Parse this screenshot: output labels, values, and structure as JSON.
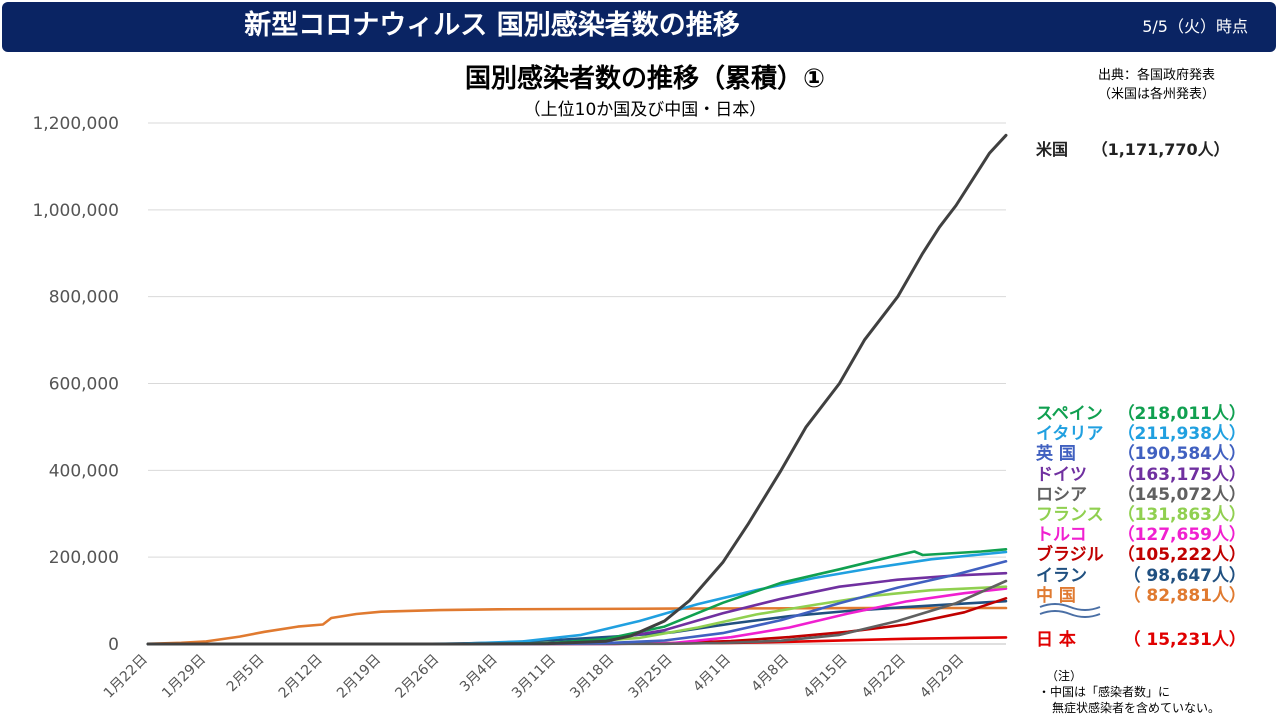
{
  "header": {
    "title": "新型コロナウィルス 国別感染者数の推移",
    "date": "5/5（火）時点"
  },
  "source": {
    "line1": "出典：各国政府発表",
    "line2": "（米国は各州発表）"
  },
  "note": {
    "head": "（注）",
    "line1": "・中国は「感染者数」に",
    "line2": "無症状感染者を含めていない。"
  },
  "chart_data": {
    "type": "line",
    "title": "国別感染者数の推移（累積）①",
    "subtitle": "（上位10か国及び中国・日本）",
    "xlabel": "",
    "ylabel": "",
    "ylim": [
      0,
      1200000
    ],
    "yticks": [
      0,
      200000,
      400000,
      600000,
      800000,
      1000000,
      1200000
    ],
    "ytick_labels": [
      "0",
      "200,000",
      "400,000",
      "600,000",
      "800,000",
      "1,000,000",
      "1,200,000"
    ],
    "x_start": "1月22日",
    "xtick_labels": [
      "1月22日",
      "1月29日",
      "2月5日",
      "2月12日",
      "2月19日",
      "2月26日",
      "3月4日",
      "3月11日",
      "3月18日",
      "3月25日",
      "4月1日",
      "4月8日",
      "4月15日",
      "4月22日",
      "4月29日"
    ],
    "grid": true,
    "legend_position": "right",
    "series": [
      {
        "name": "米国",
        "value_label": "（1,171,770人）",
        "color": "#404040",
        "points": [
          [
            "1月22日",
            0
          ],
          [
            "2月29日",
            70
          ],
          [
            "3月10日",
            1000
          ],
          [
            "3月17日",
            6400
          ],
          [
            "3月20日",
            19000
          ],
          [
            "3月24日",
            53000
          ],
          [
            "3月27日",
            100000
          ],
          [
            "3月31日",
            188000
          ],
          [
            "4月3日",
            275000
          ],
          [
            "4月7日",
            400000
          ],
          [
            "4月10日",
            500000
          ],
          [
            "4月14日",
            600000
          ],
          [
            "4月17日",
            700000
          ],
          [
            "4月21日",
            800000
          ],
          [
            "4月24日",
            900000
          ],
          [
            "4月26日",
            960000
          ],
          [
            "4月28日",
            1010000
          ],
          [
            "4月30日",
            1070000
          ],
          [
            "5月2日",
            1130000
          ],
          [
            "5月4日",
            1171770
          ]
        ]
      },
      {
        "name": "スペイン",
        "value_label": "（218,011人）",
        "color": "#10a050",
        "points": [
          [
            "1月22日",
            0
          ],
          [
            "3月1日",
            80
          ],
          [
            "3月10日",
            1700
          ],
          [
            "3月17日",
            11700
          ],
          [
            "3月24日",
            40000
          ],
          [
            "3月31日",
            95000
          ],
          [
            "4月7日",
            141000
          ],
          [
            "4月14日",
            172000
          ],
          [
            "4月20日",
            200000
          ],
          [
            "4月23日",
            213000
          ],
          [
            "4月24日",
            205000
          ],
          [
            "5月1日",
            213000
          ],
          [
            "5月4日",
            218011
          ]
        ]
      },
      {
        "name": "イタリア",
        "value_label": "（211,938人）",
        "color": "#20a0e0",
        "points": [
          [
            "1月22日",
            0
          ],
          [
            "2月21日",
            20
          ],
          [
            "2月29日",
            1100
          ],
          [
            "3月7日",
            5900
          ],
          [
            "3月14日",
            21000
          ],
          [
            "3月21日",
            53000
          ],
          [
            "3月28日",
            92000
          ],
          [
            "4月4日",
            124000
          ],
          [
            "4月11日",
            152000
          ],
          [
            "4月18日",
            175000
          ],
          [
            "4月25日",
            195000
          ],
          [
            "5月4日",
            211938
          ]
        ]
      },
      {
        "name": "英 国",
        "value_label": "（190,584人）",
        "color": "#4060c0",
        "points": [
          [
            "1月22日",
            0
          ],
          [
            "3月1日",
            36
          ],
          [
            "3月10日",
            380
          ],
          [
            "3月17日",
            2000
          ],
          [
            "3月24日",
            8000
          ],
          [
            "3月31日",
            25000
          ],
          [
            "4月7日",
            55000
          ],
          [
            "4月14日",
            94000
          ],
          [
            "4月21日",
            130000
          ],
          [
            "4月28日",
            160000
          ],
          [
            "5月4日",
            190584
          ]
        ]
      },
      {
        "name": "ドイツ",
        "value_label": "（163,175人）",
        "color": "#7030a0",
        "points": [
          [
            "1月22日",
            0
          ],
          [
            "2月25日",
            16
          ],
          [
            "3月3日",
            200
          ],
          [
            "3月10日",
            1500
          ],
          [
            "3月17日",
            9300
          ],
          [
            "3月24日",
            32000
          ],
          [
            "3月31日",
            71000
          ],
          [
            "4月7日",
            104000
          ],
          [
            "4月14日",
            132000
          ],
          [
            "4月21日",
            148000
          ],
          [
            "4月28日",
            158000
          ],
          [
            "5月4日",
            163175
          ]
        ]
      },
      {
        "name": "ロシア",
        "value_label": "（145,072人）",
        "color": "#606060",
        "points": [
          [
            "1月22日",
            0
          ],
          [
            "3月10日",
            10
          ],
          [
            "3月24日",
            500
          ],
          [
            "3月31日",
            2300
          ],
          [
            "4月7日",
            7500
          ],
          [
            "4月14日",
            21000
          ],
          [
            "4月21日",
            53000
          ],
          [
            "4月28日",
            94000
          ],
          [
            "5月4日",
            145072
          ]
        ]
      },
      {
        "name": "フランス",
        "value_label": "（131,863人）",
        "color": "#90d050",
        "points": [
          [
            "1月22日",
            0
          ],
          [
            "2月29日",
            100
          ],
          [
            "3月7日",
            900
          ],
          [
            "3月14日",
            4500
          ],
          [
            "3月21日",
            14000
          ],
          [
            "3月28日",
            38000
          ],
          [
            "4月4日",
            68000
          ],
          [
            "4月11日",
            90000
          ],
          [
            "4月18日",
            111000
          ],
          [
            "4月25日",
            124000
          ],
          [
            "5月4日",
            131863
          ]
        ]
      },
      {
        "name": "トルコ",
        "value_label": "（127,659人）",
        "color": "#f020d0",
        "points": [
          [
            "1月22日",
            0
          ],
          [
            "3月11日",
            1
          ],
          [
            "3月18日",
            190
          ],
          [
            "3月25日",
            2400
          ],
          [
            "4月1日",
            15700
          ],
          [
            "4月8日",
            38000
          ],
          [
            "4月15日",
            70000
          ],
          [
            "4月22日",
            98000
          ],
          [
            "4月29日",
            117000
          ],
          [
            "5月4日",
            127659
          ]
        ]
      },
      {
        "name": "ブラジル",
        "value_label": "（105,222人）",
        "color": "#c00000",
        "points": [
          [
            "1月22日",
            0
          ],
          [
            "2月26日",
            1
          ],
          [
            "3月11日",
            50
          ],
          [
            "3月18日",
            400
          ],
          [
            "3月25日",
            2400
          ],
          [
            "4月1日",
            6800
          ],
          [
            "4月8日",
            16000
          ],
          [
            "4月15日",
            28000
          ],
          [
            "4月22日",
            45000
          ],
          [
            "4月29日",
            73000
          ],
          [
            "5月4日",
            105222
          ]
        ]
      },
      {
        "name": "イラン",
        "value_label": "（ 98,647人）",
        "color": "#205080",
        "points": [
          [
            "1月22日",
            0
          ],
          [
            "2月19日",
            2
          ],
          [
            "2月26日",
            140
          ],
          [
            "3月4日",
            2900
          ],
          [
            "3月11日",
            9000
          ],
          [
            "3月18日",
            17000
          ],
          [
            "3月25日",
            27000
          ],
          [
            "4月1日",
            47000
          ],
          [
            "4月8日",
            64000
          ],
          [
            "4月15日",
            76000
          ],
          [
            "4月22日",
            85000
          ],
          [
            "4月29日",
            93000
          ],
          [
            "5月4日",
            98647
          ]
        ]
      },
      {
        "name": "中 国",
        "value_label": "（ 82,881人）",
        "color": "#e07a30",
        "points": [
          [
            "1月22日",
            550
          ],
          [
            "1月26日",
            2700
          ],
          [
            "1月29日",
            6000
          ],
          [
            "2月2日",
            17000
          ],
          [
            "2月5日",
            28000
          ],
          [
            "2月9日",
            40000
          ],
          [
            "2月12日",
            45000
          ],
          [
            "2月13日",
            60000
          ],
          [
            "2月16日",
            69000
          ],
          [
            "2月19日",
            74500
          ],
          [
            "2月26日",
            78000
          ],
          [
            "3月4日",
            80000
          ],
          [
            "3月25日",
            81500
          ],
          [
            "4月17日",
            82700
          ],
          [
            "4月18日",
            82700
          ],
          [
            "5月4日",
            82881
          ]
        ]
      },
      {
        "name": "日 本",
        "value_label": "（ 15,231人）",
        "color": "#e00000",
        "points": [
          [
            "1月22日",
            0
          ],
          [
            "2月12日",
            30
          ],
          [
            "2月26日",
            180
          ],
          [
            "3月11日",
            600
          ],
          [
            "3月25日",
            1300
          ],
          [
            "4月1日",
            2500
          ],
          [
            "4月8日",
            5000
          ],
          [
            "4月15日",
            8500
          ],
          [
            "4月22日",
            12000
          ],
          [
            "4月29日",
            14000
          ],
          [
            "5月4日",
            15231
          ]
        ]
      }
    ]
  }
}
